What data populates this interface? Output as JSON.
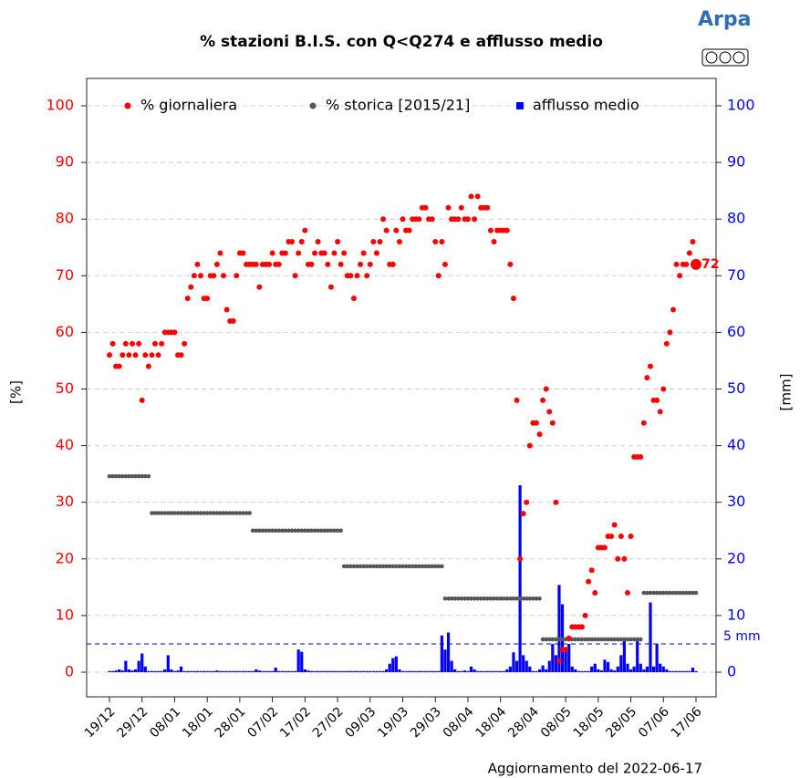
{
  "chart_data": {
    "type": "combo",
    "title": "% stazioni B.I.S. con Q<Q274 e afflusso medio",
    "logo": "Arpa",
    "ylabel": "[%]",
    "y2label": "[mm]",
    "footer": "Aggiornamento del 2022-06-17",
    "threshold": {
      "value": 5,
      "label": "5 mm",
      "axis": "y2",
      "color": "#0000ff"
    },
    "grid": true,
    "legend": "top",
    "ylim": [
      0,
      100
    ],
    "yticks": [
      0,
      10,
      20,
      30,
      40,
      50,
      60,
      70,
      80,
      90,
      100
    ],
    "y2lim": [
      0,
      100
    ],
    "y2ticks": [
      0,
      10,
      20,
      30,
      40,
      50,
      60,
      70,
      80,
      90,
      100
    ],
    "categories": [
      "19/12",
      null,
      null,
      null,
      null,
      null,
      null,
      null,
      null,
      null,
      "29/12",
      null,
      null,
      null,
      null,
      null,
      null,
      null,
      null,
      null,
      "08/01",
      null,
      null,
      null,
      null,
      null,
      null,
      null,
      null,
      null,
      "18/01",
      null,
      null,
      null,
      null,
      null,
      null,
      null,
      null,
      null,
      "28/01",
      null,
      null,
      null,
      null,
      null,
      null,
      null,
      null,
      null,
      "07/02",
      null,
      null,
      null,
      null,
      null,
      null,
      null,
      null,
      null,
      "17/02",
      null,
      null,
      null,
      null,
      null,
      null,
      null,
      null,
      null,
      "27/02",
      null,
      null,
      null,
      null,
      null,
      null,
      null,
      null,
      null,
      "09/03",
      null,
      null,
      null,
      null,
      null,
      null,
      null,
      null,
      null,
      "19/03",
      null,
      null,
      null,
      null,
      null,
      null,
      null,
      null,
      null,
      "29/03",
      null,
      null,
      null,
      null,
      null,
      null,
      null,
      null,
      null,
      "08/04",
      null,
      null,
      null,
      null,
      null,
      null,
      null,
      null,
      null,
      "18/04",
      null,
      null,
      null,
      null,
      null,
      null,
      null,
      null,
      null,
      "28/04",
      null,
      null,
      null,
      null,
      null,
      null,
      null,
      null,
      null,
      "08/05",
      null,
      null,
      null,
      null,
      null,
      null,
      null,
      null,
      null,
      "18/05",
      null,
      null,
      null,
      null,
      null,
      null,
      null,
      null,
      null,
      "28/05",
      null,
      null,
      null,
      null,
      null,
      null,
      null,
      null,
      null,
      "07/06",
      null,
      null,
      null,
      null,
      null,
      null,
      null,
      null,
      null,
      "17/06"
    ],
    "series": [
      {
        "name": "% giornaliera",
        "type": "scatter",
        "axis": "y",
        "color": "#ff0000",
        "values": [
          56,
          58,
          54,
          54,
          56,
          58,
          56,
          58,
          56,
          58,
          48,
          56,
          54,
          56,
          58,
          56,
          58,
          60,
          60,
          60,
          60,
          56,
          56,
          58,
          66,
          68,
          70,
          72,
          70,
          66,
          66,
          70,
          70,
          72,
          74,
          70,
          64,
          62,
          62,
          70,
          74,
          74,
          72,
          72,
          72,
          72,
          68,
          72,
          72,
          72,
          74,
          72,
          72,
          74,
          74,
          76,
          76,
          70,
          74,
          76,
          78,
          72,
          72,
          74,
          76,
          74,
          74,
          72,
          68,
          74,
          76,
          72,
          74,
          70,
          70,
          66,
          70,
          72,
          74,
          70,
          72,
          76,
          74,
          76,
          80,
          78,
          72,
          72,
          78,
          76,
          80,
          78,
          78,
          80,
          80,
          80,
          82,
          82,
          80,
          80,
          76,
          70,
          76,
          72,
          82,
          80,
          80,
          80,
          82,
          80,
          80,
          84,
          80,
          84,
          82,
          82,
          82,
          78,
          76,
          78,
          78,
          78,
          78,
          72,
          66,
          48,
          20,
          28,
          30,
          40,
          44,
          44,
          42,
          48,
          50,
          46,
          44,
          30,
          2,
          4,
          4,
          6,
          8,
          8,
          8,
          8,
          10,
          16,
          18,
          14,
          22,
          22,
          22,
          24,
          24,
          26,
          20,
          24,
          20,
          14,
          24,
          38,
          38,
          38,
          44,
          52,
          54,
          48,
          48,
          46,
          50,
          58,
          60,
          64,
          72,
          70,
          72,
          72,
          74,
          76,
          72
        ]
      },
      {
        "name": "% storica [2015/21]",
        "type": "scatter",
        "axis": "y",
        "color": "#555555",
        "values": [
          34.6,
          34.6,
          34.6,
          34.6,
          34.6,
          34.6,
          34.6,
          34.6,
          34.6,
          34.6,
          34.6,
          34.6,
          34.6,
          28.1,
          28.1,
          28.1,
          28.1,
          28.1,
          28.1,
          28.1,
          28.1,
          28.1,
          28.1,
          28.1,
          28.1,
          28.1,
          28.1,
          28.1,
          28.1,
          28.1,
          28.1,
          28.1,
          28.1,
          28.1,
          28.1,
          28.1,
          28.1,
          28.1,
          28.1,
          28.1,
          28.1,
          28.1,
          28.1,
          28.1,
          25,
          25,
          25,
          25,
          25,
          25,
          25,
          25,
          25,
          25,
          25,
          25,
          25,
          25,
          25,
          25,
          25,
          25,
          25,
          25,
          25,
          25,
          25,
          25,
          25,
          25,
          25,
          25,
          18.7,
          18.7,
          18.7,
          18.7,
          18.7,
          18.7,
          18.7,
          18.7,
          18.7,
          18.7,
          18.7,
          18.7,
          18.7,
          18.7,
          18.7,
          18.7,
          18.7,
          18.7,
          18.7,
          18.7,
          18.7,
          18.7,
          18.7,
          18.7,
          18.7,
          18.7,
          18.7,
          18.7,
          18.7,
          18.7,
          18.7,
          13,
          13,
          13,
          13,
          13,
          13,
          13,
          13,
          13,
          13,
          13,
          13,
          13,
          13,
          13,
          13,
          13,
          13,
          13,
          13,
          13,
          13,
          13,
          13,
          13,
          13,
          13,
          13,
          13,
          13,
          5.8,
          5.8,
          5.8,
          5.8,
          5.8,
          5.8,
          5.8,
          5.8,
          5.8,
          5.8,
          5.8,
          5.8,
          5.8,
          5.8,
          5.8,
          5.8,
          5.8,
          5.8,
          5.8,
          5.8,
          5.8,
          5.8,
          5.8,
          5.8,
          5.8,
          5.8,
          5.8,
          5.8,
          5.8,
          5.8,
          5.8,
          14,
          14,
          14,
          14,
          14,
          14,
          14,
          14,
          14,
          14,
          14,
          14,
          14,
          14,
          14,
          14,
          14
        ]
      },
      {
        "name": "afflusso medio",
        "type": "bar",
        "axis": "y2",
        "color": "#0000ff",
        "values": [
          0.2,
          0.2,
          0.3,
          0.5,
          0.3,
          2,
          0.5,
          0.3,
          0.5,
          2,
          3.3,
          1,
          0.2,
          0.2,
          0.2,
          0.2,
          0.2,
          0.5,
          3,
          0.5,
          0.2,
          0.3,
          1,
          0.2,
          0.2,
          0.2,
          0.2,
          0.2,
          0.2,
          0.2,
          0.2,
          0.2,
          0.2,
          0.3,
          0.2,
          0.2,
          0.2,
          0.2,
          0.2,
          0.2,
          0.2,
          0.2,
          0.2,
          0.2,
          0.2,
          0.5,
          0.3,
          0.2,
          0.2,
          0.2,
          0.2,
          0.8,
          0.2,
          0.2,
          0.2,
          0.2,
          0.2,
          0.2,
          4,
          3.6,
          0.5,
          0.3,
          0.2,
          0.2,
          0.2,
          0.2,
          0.2,
          0.2,
          0.2,
          0.2,
          0.2,
          0.2,
          0.2,
          0.2,
          0.2,
          0.2,
          0.2,
          0.2,
          0.2,
          0.2,
          0.2,
          0.2,
          0.2,
          0.2,
          0.2,
          0.5,
          1.5,
          2.5,
          2.8,
          0.5,
          0.2,
          0.2,
          0.2,
          0.2,
          0.2,
          0.2,
          0.2,
          0.2,
          0.2,
          0.2,
          0.2,
          0.2,
          6.5,
          4,
          7,
          2,
          0.5,
          0.2,
          0.2,
          0.3,
          0.2,
          1,
          0.5,
          0.2,
          0.2,
          0.2,
          0.2,
          0.2,
          0.2,
          0.2,
          0.2,
          0.2,
          0.5,
          1,
          3.5,
          2,
          33,
          3,
          2,
          1,
          0.2,
          0.2,
          0.5,
          1.2,
          0.5,
          2,
          5,
          3,
          15.4,
          12,
          4,
          5,
          1,
          0.5,
          0.2,
          0.2,
          0.2,
          0.2,
          1,
          1.5,
          0.5,
          0.3,
          2.2,
          1.8,
          0.5,
          0.3,
          1,
          3,
          5.5,
          1.5,
          0.5,
          1,
          5.5,
          1.5,
          0.5,
          1,
          12.3,
          1,
          5,
          1.5,
          1,
          0.5,
          0.2,
          0.2,
          0.2,
          0.2,
          0.2,
          0.2,
          0.2,
          0.8,
          0.2
        ]
      }
    ]
  }
}
